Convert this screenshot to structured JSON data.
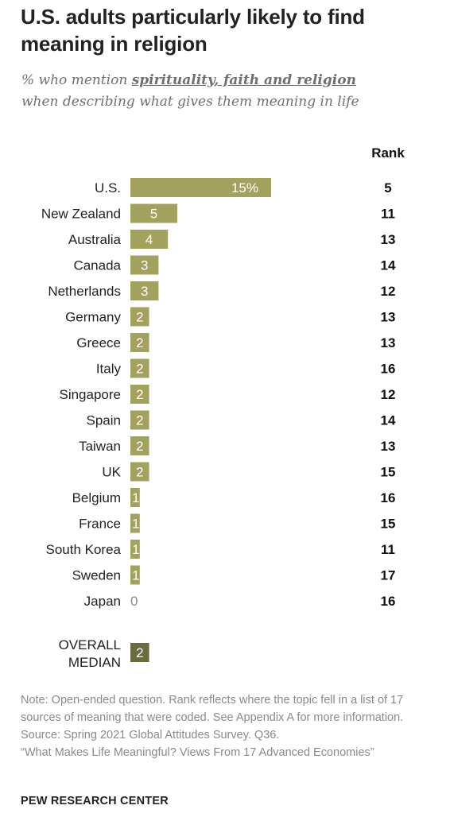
{
  "title": "U.S. adults particularly likely to find meaning in religion",
  "subtitle": {
    "prefix": "% who mention ",
    "highlight": "spirituality, faith and religion",
    "suffix": "when describing what gives them meaning in life"
  },
  "chart_data": {
    "type": "bar",
    "orientation": "horizontal",
    "rank_header": "Rank",
    "categories": [
      "U.S.",
      "New Zealand",
      "Australia",
      "Canada",
      "Netherlands",
      "Germany",
      "Greece",
      "Italy",
      "Singapore",
      "Spain",
      "Taiwan",
      "UK",
      "Belgium",
      "France",
      "South Korea",
      "Sweden",
      "Japan"
    ],
    "values": [
      15,
      5,
      4,
      3,
      3,
      2,
      2,
      2,
      2,
      2,
      2,
      2,
      1,
      1,
      1,
      1,
      0
    ],
    "value_labels": [
      "15%",
      "5",
      "4",
      "3",
      "3",
      "2",
      "2",
      "2",
      "2",
      "2",
      "2",
      "2",
      "1",
      "1",
      "1",
      "1",
      "0"
    ],
    "ranks": [
      "5",
      "11",
      "13",
      "14",
      "12",
      "13",
      "13",
      "16",
      "12",
      "14",
      "13",
      "15",
      "16",
      "15",
      "11",
      "17",
      "16"
    ],
    "median": {
      "label_line1": "OVERALL",
      "label_line2": "MEDIAN",
      "value": 2,
      "value_label": "2"
    },
    "bar_color": "#a3a15e",
    "median_color": "#6b6b3e"
  },
  "notes": {
    "note": "Note: Open-ended question. Rank reflects where the topic fell in a list of 17 sources of meaning that were coded. See Appendix A for more information.",
    "source": "Source: Spring 2021 Global Attitudes Survey. Q36.",
    "report": "“What Makes Life Meaningful? Views From 17 Advanced Economies”"
  },
  "brand": "PEW RESEARCH CENTER"
}
